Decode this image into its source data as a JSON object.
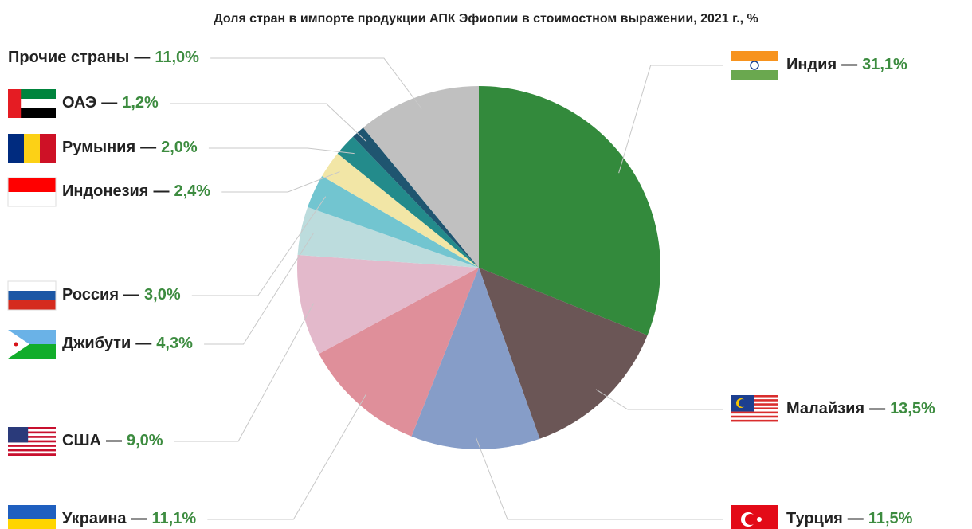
{
  "chart_data": {
    "type": "pie",
    "title": "Доля стран в импорте продукции АПК Эфиопии в стоимостном выражении, 2021 г., %",
    "separator": "—",
    "categories": [
      "Индия",
      "Малайзия",
      "Турция",
      "Украина",
      "США",
      "Джибути",
      "Россия",
      "Индонезия",
      "Румыния",
      "ОАЭ",
      "Прочие страны"
    ],
    "values": [
      31.1,
      13.5,
      11.5,
      11.1,
      9.0,
      4.3,
      3.0,
      2.4,
      2.0,
      1.2,
      11.0
    ],
    "value_labels": [
      "31,1%",
      "13,5%",
      "11,5%",
      "11,1%",
      "9,0%",
      "4,3%",
      "3,0%",
      "2,4%",
      "2,0%",
      "1,2%",
      "11,0%"
    ],
    "colors": [
      "#338a3c",
      "#6b5656",
      "#869dc8",
      "#df8f9a",
      "#e3b9cb",
      "#bcdcdd",
      "#72c5d0",
      "#f2e6a6",
      "#238b8b",
      "#1f5570",
      "#c0c0c0"
    ],
    "value_label_color": "#3d8c40"
  }
}
